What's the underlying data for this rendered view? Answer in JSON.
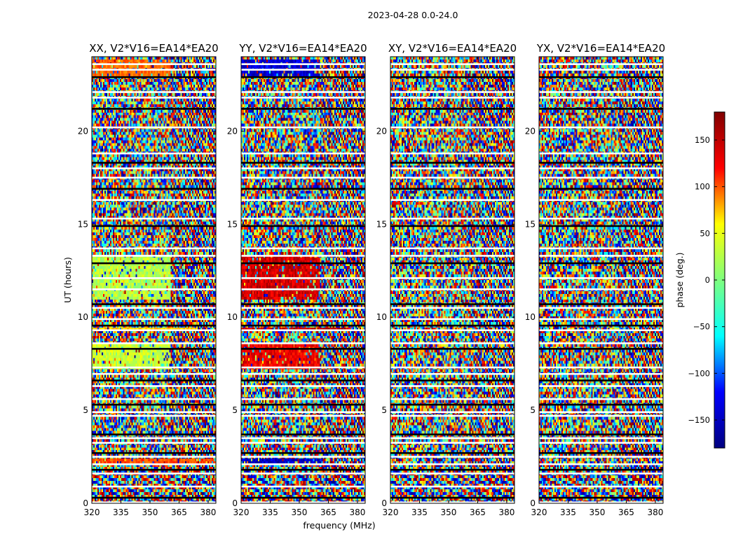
{
  "figure": {
    "suptitle": "2023-04-28 0.0-24.0",
    "xlabel": "frequency (MHz)",
    "ylabel": "UT (hours)"
  },
  "chart_data": {
    "type": "heatmap",
    "description_free": true,
    "xlim": [
      320,
      384
    ],
    "ylim": [
      0,
      24
    ],
    "xticks": [
      320,
      335,
      350,
      365,
      380
    ],
    "yticks": [
      0,
      5,
      10,
      15,
      20
    ],
    "panels": [
      {
        "title": "XX, V2*V16=EA14*EA20",
        "key": "XX"
      },
      {
        "title": "YY, V2*V16=EA14*EA20",
        "key": "YY"
      },
      {
        "title": "XY, V2*V16=EA14*EA20",
        "key": "XY"
      },
      {
        "title": "YX, V2*V16=EA14*EA20",
        "key": "YX"
      }
    ],
    "flagged_gaps_ut": [
      0.05,
      0.3,
      0.9,
      1.6,
      1.8,
      2.1,
      2.5,
      2.7,
      3.25,
      3.5,
      3.7,
      4.7,
      4.9,
      5.3,
      5.6,
      6.3,
      6.6,
      6.95,
      7.3,
      8.3,
      8.6,
      9.3,
      9.55,
      9.9,
      10.5,
      10.7,
      11.5,
      12.1,
      12.9,
      13.3,
      13.7,
      14.9,
      15.3,
      16.3,
      16.9,
      17.5,
      18.0,
      18.3,
      18.8,
      20.2,
      21.2,
      21.8,
      22.1,
      22.9,
      23.3,
      23.6
    ],
    "structured_bands": [
      {
        "panel": "XX",
        "ut": [
          22.9,
          23.9
        ],
        "freq": [
          320,
          361
        ],
        "phase_deg": 100
      },
      {
        "panel": "XX",
        "ut": [
          11.0,
          13.4
        ],
        "freq": [
          320,
          361
        ],
        "phase_deg": 20
      },
      {
        "panel": "XX",
        "ut": [
          9.3,
          9.5
        ],
        "freq": [
          320,
          375
        ],
        "phase_deg": 60
      },
      {
        "panel": "XX",
        "ut": [
          7.2,
          8.5
        ],
        "freq": [
          320,
          361
        ],
        "phase_deg": 25
      },
      {
        "panel": "XX",
        "ut": [
          2.1,
          2.4
        ],
        "freq": [
          320,
          384
        ],
        "phase_deg": 110
      },
      {
        "panel": "YY",
        "ut": [
          22.9,
          23.9
        ],
        "freq": [
          320,
          361
        ],
        "phase_deg": -150
      },
      {
        "panel": "YY",
        "ut": [
          11.0,
          13.4
        ],
        "freq": [
          320,
          361
        ],
        "phase_deg": 150
      },
      {
        "panel": "YY",
        "ut": [
          9.3,
          9.5
        ],
        "freq": [
          320,
          375
        ],
        "phase_deg": 160
      },
      {
        "panel": "YY",
        "ut": [
          7.2,
          8.5
        ],
        "freq": [
          320,
          361
        ],
        "phase_deg": 140
      },
      {
        "panel": "YY",
        "ut": [
          2.1,
          2.4
        ],
        "freq": [
          320,
          361
        ],
        "phase_deg": -155
      }
    ],
    "colorbar": {
      "label": "phase (deg.)",
      "range": [
        -180,
        180
      ],
      "ticks": [
        -150,
        -100,
        -50,
        0,
        50,
        100,
        150
      ],
      "tick_labels": [
        "−150",
        "−100",
        "−50",
        "0",
        "50",
        "100",
        "150"
      ],
      "colormap": "jet",
      "stops": [
        "#000080",
        "#0000ff",
        "#00ffff",
        "#7fff7f",
        "#ffff00",
        "#ff0000",
        "#800000"
      ]
    }
  }
}
